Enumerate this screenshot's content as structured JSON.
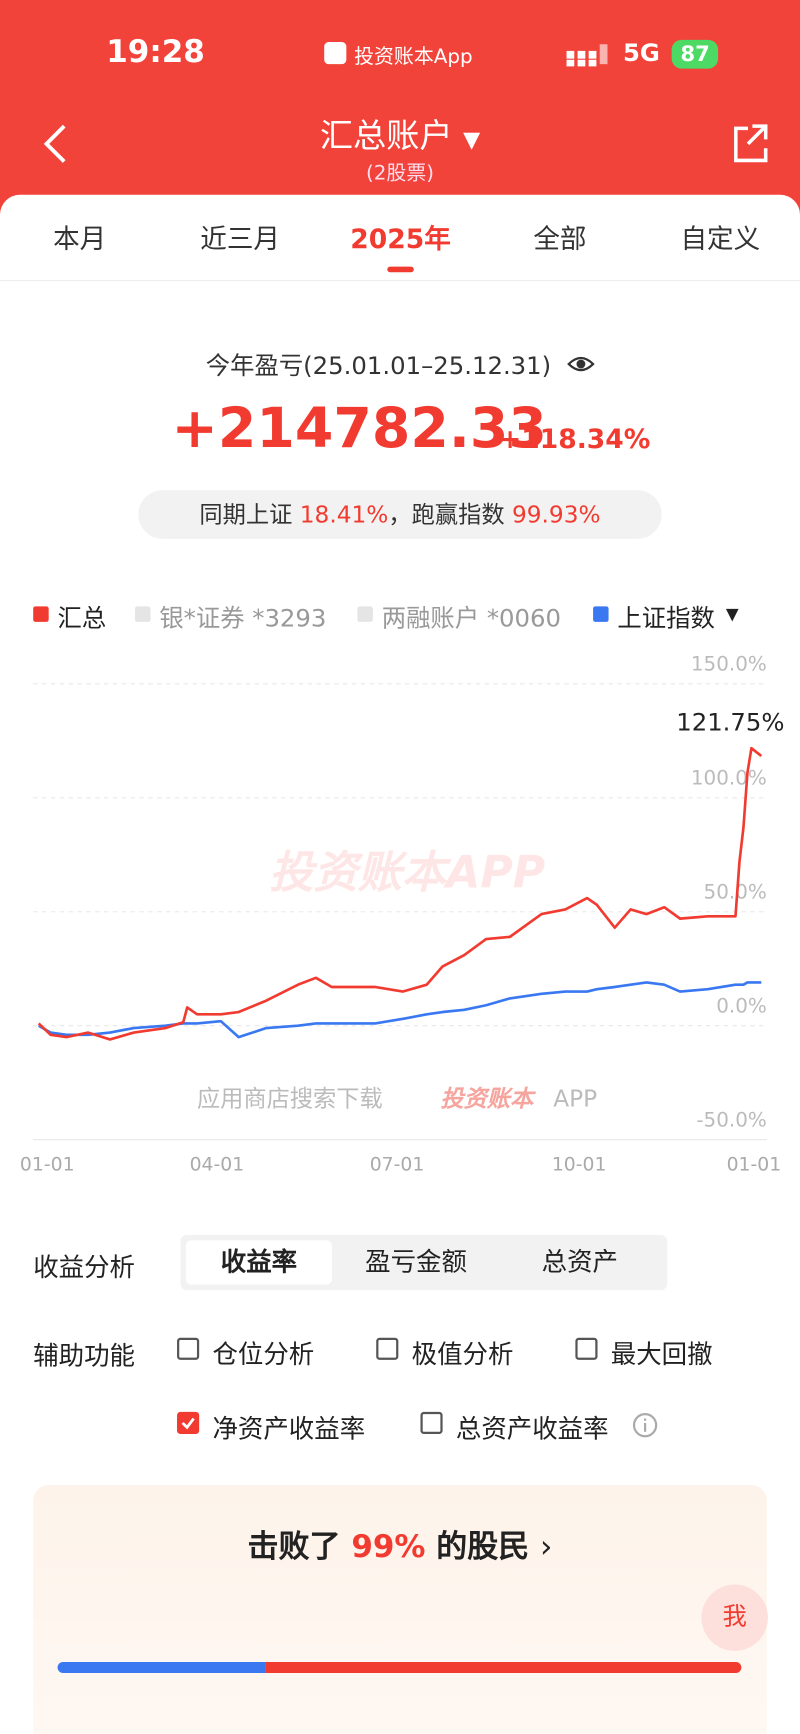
{
  "status": {
    "time": "19:28",
    "app": "投资账本App",
    "network": "5G",
    "battery": "87"
  },
  "header": {
    "title": "汇总账户",
    "subtitle": "(2股票)"
  },
  "tabs": {
    "items": [
      "本月",
      "近三月",
      "2025年",
      "全部",
      "自定义"
    ],
    "active": 2
  },
  "summary": {
    "label": "今年盈亏(25.01.01–25.12.31)",
    "amount": "+214782.33",
    "rate": "+118.34%",
    "compare_label": "同期上证",
    "compare_value": "18.41%",
    "beat_label": "，跑赢指数",
    "beat_value": "99.93%"
  },
  "legend_inactive": [
    "银*证券 *3293",
    "两融账户 *0060"
  ],
  "chart_data": {
    "type": "line",
    "annotation": "121.75%",
    "watermark": "投资账本APP",
    "download_hint": "应用商店搜索下载",
    "download_brand": "投资账本",
    "download_suffix": "APP",
    "xlim": [
      0,
      365
    ],
    "xticks": [
      {
        "value": 0,
        "label": "01-01"
      },
      {
        "value": 90,
        "label": "04-01"
      },
      {
        "value": 181,
        "label": "07-01"
      },
      {
        "value": 273,
        "label": "10-01"
      },
      {
        "value": 365,
        "label": "01-01"
      }
    ],
    "ylim": [
      -50,
      150
    ],
    "yticks": [
      {
        "value": 150,
        "label": "150.0%"
      },
      {
        "value": 100,
        "label": "100.0%"
      },
      {
        "value": 50,
        "label": "50.0%"
      },
      {
        "value": 0,
        "label": "0.0%"
      },
      {
        "value": -50,
        "label": "-50.0%"
      }
    ],
    "grid": true,
    "x": [
      0,
      6,
      14,
      25,
      36,
      48,
      64,
      73,
      75,
      80,
      92,
      101,
      115,
      131,
      140,
      148,
      170,
      184,
      196,
      204,
      215,
      226,
      238,
      254,
      266,
      277,
      282,
      291,
      299,
      307,
      316,
      324,
      338,
      352,
      354,
      356,
      358,
      360,
      365
    ],
    "series": [
      {
        "name": "汇总",
        "color": "#f23b30",
        "values": [
          1,
          -4,
          -5,
          -3,
          -6,
          -3,
          -1,
          1.5,
          8,
          5,
          5,
          6,
          11,
          18,
          21,
          17,
          17,
          15,
          18,
          26,
          31,
          38,
          39,
          49,
          51,
          56,
          53,
          43,
          51,
          49,
          52,
          47,
          48,
          48,
          72,
          87,
          111,
          121.75,
          118.34
        ]
      },
      {
        "name": "上证指数",
        "color": "#3a78f2",
        "values": [
          0,
          -3,
          -4,
          -4,
          -3,
          -1,
          0,
          1,
          1,
          1,
          2,
          -5,
          -1,
          0,
          1,
          1,
          1,
          3,
          5,
          6,
          7,
          9,
          12,
          14,
          15,
          15,
          16,
          17,
          18,
          19,
          18,
          15,
          16,
          18,
          18,
          18,
          19,
          19,
          19
        ]
      }
    ]
  },
  "analysis": {
    "label": "收益分析",
    "options": [
      "收益率",
      "盈亏金额",
      "总资产"
    ],
    "selected": 0
  },
  "aux": {
    "label": "辅助功能",
    "options": [
      {
        "label": "仓位分析",
        "checked": false
      },
      {
        "label": "极值分析",
        "checked": false
      },
      {
        "label": "最大回撤",
        "checked": false
      },
      {
        "label": "净资产收益率",
        "checked": true
      },
      {
        "label": "总资产收益率",
        "checked": false
      }
    ]
  },
  "banner": {
    "prefix": "击败了",
    "value": "99%",
    "suffix": "的股民"
  },
  "float_button": "我"
}
